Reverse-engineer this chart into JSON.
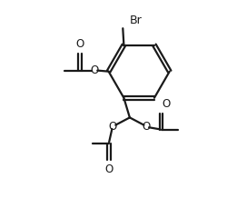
{
  "background": "#ffffff",
  "line_color": "#1a1a1a",
  "line_width": 1.6,
  "font_size": 8.5,
  "label_color": "#1a1a1a",
  "xlim": [
    0,
    10
  ],
  "ylim": [
    0,
    10
  ]
}
